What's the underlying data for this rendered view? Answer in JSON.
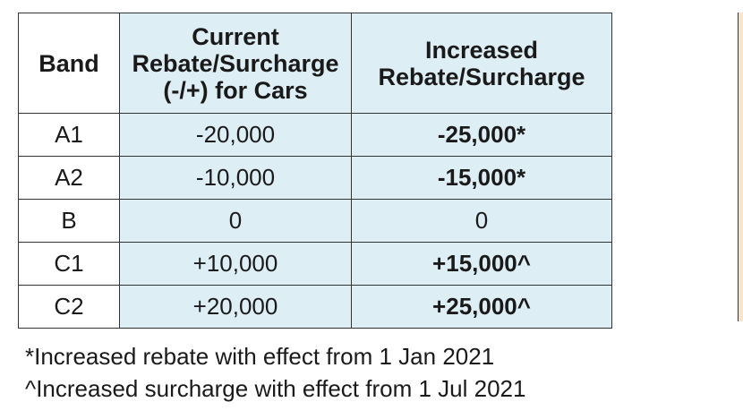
{
  "table": {
    "headers": {
      "band": "Band",
      "current_line1": "Current",
      "current_line2": "Rebate/Surcharge",
      "current_line3": "(-/+) for Cars",
      "increased_line1": "Increased",
      "increased_line2": "Rebate/Surcharge"
    },
    "rows": [
      {
        "band": "A1",
        "current": "-20,000",
        "increased": "-25,000*"
      },
      {
        "band": "A2",
        "current": "-10,000",
        "increased": "-15,000*"
      },
      {
        "band": "B",
        "current": "0",
        "increased": "0"
      },
      {
        "band": "C1",
        "current": "+10,000",
        "increased": "+15,000^"
      },
      {
        "band": "C2",
        "current": "+20,000",
        "increased": "+25,000^"
      }
    ]
  },
  "footnotes": {
    "rebate_note": "*Increased rebate with effect from 1 Jan 2021",
    "surcharge_note": "^Increased surcharge with effect from 1 Jul 2021"
  },
  "colors": {
    "header_fill": "#deeef5",
    "edge_fill": "#fbe3c8"
  }
}
